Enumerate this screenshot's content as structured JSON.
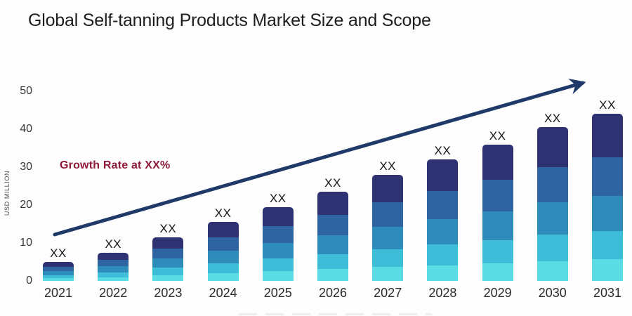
{
  "page": {
    "background": "#fdfdfe"
  },
  "header": {
    "title": "Global Self-tanning Products Market Size and Scope"
  },
  "annotation": {
    "growth_label": "Growth Rate at XX%",
    "color": "#8e1b3a"
  },
  "y_axis": {
    "label": "USD MILLION",
    "ticks": [
      0,
      10,
      20,
      30,
      40,
      50
    ]
  },
  "chart_data": {
    "type": "bar",
    "stacked": true,
    "title": "Global Self-tanning Products Market Size and Scope",
    "xlabel": "",
    "ylabel": "USD MILLION",
    "ylim": [
      0,
      50
    ],
    "grid": false,
    "legend_position": "none",
    "categories": [
      "2021",
      "2022",
      "2023",
      "2024",
      "2025",
      "2026",
      "2027",
      "2028",
      "2029",
      "2030",
      "2031"
    ],
    "totals_estimated": [
      5,
      7.5,
      11.5,
      15.5,
      19.5,
      23.5,
      28,
      32,
      36,
      40.5,
      44
    ],
    "bar_value_labels": [
      "XX",
      "XX",
      "XX",
      "XX",
      "XX",
      "XX",
      "XX",
      "XX",
      "XX",
      "XX",
      "XX"
    ],
    "segments_top_to_bottom": {
      "names": [
        "segment-1",
        "segment-2",
        "segment-3",
        "segment-4",
        "segment-5"
      ],
      "fractions": [
        0.26,
        0.23,
        0.21,
        0.17,
        0.13
      ],
      "colors": [
        "#2e3273",
        "#2d64a1",
        "#2f8cba",
        "#3dbdd8",
        "#5bdce5"
      ]
    },
    "trend_arrow": {
      "description": "straight growth arrow from lower-left to upper-right",
      "start_value_approx": 12,
      "end_value_approx": 53,
      "color": "#1f3a68"
    }
  }
}
